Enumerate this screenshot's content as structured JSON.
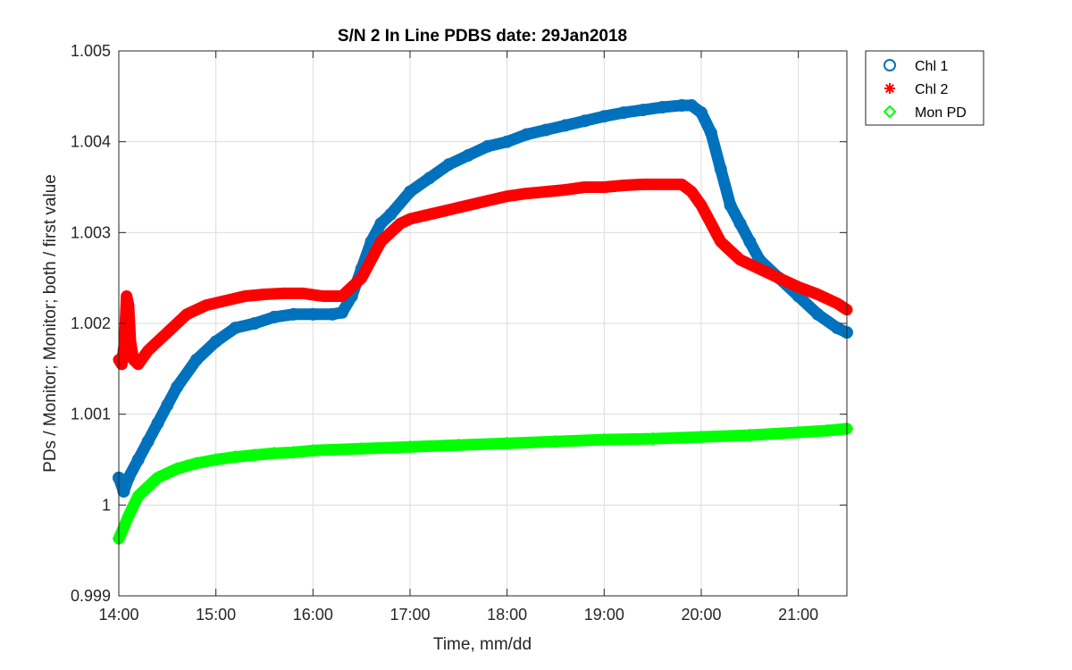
{
  "chart_data": {
    "type": "scatter",
    "title": "S/N 2 In Line PDBS date: 29Jan2018",
    "xlabel": "Time, mm/dd",
    "ylabel": "PDs / Monitor; Monitor; both / first value",
    "xlim": [
      14.0,
      21.5
    ],
    "ylim": [
      0.999,
      1.005
    ],
    "x_ticks": [
      14,
      15,
      16,
      17,
      18,
      19,
      20,
      21
    ],
    "x_tick_labels": [
      "14:00",
      "15:00",
      "16:00",
      "17:00",
      "18:00",
      "19:00",
      "20:00",
      "21:00"
    ],
    "y_ticks": [
      0.999,
      1.0,
      1.001,
      1.002,
      1.003,
      1.004,
      1.005
    ],
    "y_tick_labels": [
      "0.999",
      "1",
      "1.001",
      "1.002",
      "1.003",
      "1.004",
      "1.005"
    ],
    "grid": true,
    "legend_position": "outside top-right",
    "series": [
      {
        "name": "Chl 1",
        "marker": "circle",
        "color": "#0072BD",
        "x": [
          14.0,
          14.05,
          14.1,
          14.2,
          14.3,
          14.4,
          14.5,
          14.6,
          14.8,
          15.0,
          15.2,
          15.4,
          15.6,
          15.8,
          16.0,
          16.2,
          16.3,
          16.4,
          16.5,
          16.6,
          16.7,
          16.8,
          17.0,
          17.2,
          17.4,
          17.6,
          17.8,
          18.0,
          18.2,
          18.4,
          18.6,
          18.8,
          19.0,
          19.2,
          19.4,
          19.6,
          19.8,
          19.9,
          20.0,
          20.1,
          20.2,
          20.3,
          20.4,
          20.5,
          20.6,
          20.8,
          21.0,
          21.2,
          21.4,
          21.5
        ],
        "y": [
          1.0003,
          1.00015,
          1.0003,
          1.0005,
          1.0007,
          1.0009,
          1.0011,
          1.0013,
          1.0016,
          1.0018,
          1.00195,
          1.002,
          1.00207,
          1.0021,
          1.0021,
          1.0021,
          1.00212,
          1.0023,
          1.0026,
          1.0029,
          1.0031,
          1.0032,
          1.00345,
          1.0036,
          1.00375,
          1.00385,
          1.00395,
          1.004,
          1.00408,
          1.00413,
          1.00418,
          1.00423,
          1.00428,
          1.00432,
          1.00435,
          1.00438,
          1.0044,
          1.0044,
          1.00432,
          1.0041,
          1.0037,
          1.0033,
          1.0031,
          1.0029,
          1.0027,
          1.0025,
          1.0023,
          1.0021,
          1.00195,
          1.0019
        ]
      },
      {
        "name": "Chl 2",
        "marker": "asterisk",
        "color": "#FF0000",
        "x": [
          14.0,
          14.03,
          14.06,
          14.08,
          14.1,
          14.12,
          14.15,
          14.2,
          14.3,
          14.5,
          14.7,
          14.9,
          15.1,
          15.3,
          15.5,
          15.7,
          15.9,
          16.1,
          16.3,
          16.4,
          16.5,
          16.6,
          16.7,
          16.8,
          16.9,
          17.0,
          17.2,
          17.4,
          17.6,
          17.8,
          18.0,
          18.2,
          18.4,
          18.6,
          18.8,
          19.0,
          19.2,
          19.4,
          19.6,
          19.8,
          19.9,
          20.0,
          20.1,
          20.2,
          20.3,
          20.4,
          20.6,
          20.8,
          21.0,
          21.2,
          21.4,
          21.5
        ],
        "y": [
          1.0016,
          1.00155,
          1.0018,
          1.0023,
          1.0022,
          1.0018,
          1.0016,
          1.00155,
          1.0017,
          1.0019,
          1.0021,
          1.0022,
          1.00225,
          1.0023,
          1.00232,
          1.00233,
          1.00233,
          1.0023,
          1.0023,
          1.0024,
          1.0025,
          1.0027,
          1.0029,
          1.003,
          1.0031,
          1.00315,
          1.0032,
          1.00325,
          1.0033,
          1.00335,
          1.0034,
          1.00343,
          1.00345,
          1.00347,
          1.0035,
          1.0035,
          1.00352,
          1.00353,
          1.00353,
          1.00353,
          1.00345,
          1.0033,
          1.0031,
          1.0029,
          1.0028,
          1.0027,
          1.0026,
          1.0025,
          1.0024,
          1.00232,
          1.00222,
          1.00215
        ]
      },
      {
        "name": "Mon PD",
        "marker": "diamond",
        "color": "#00FF00",
        "x": [
          14.0,
          14.05,
          14.1,
          14.2,
          14.3,
          14.4,
          14.5,
          14.6,
          14.7,
          14.8,
          15.0,
          15.2,
          15.4,
          15.6,
          15.8,
          16.0,
          16.5,
          17.0,
          17.5,
          18.0,
          18.5,
          19.0,
          19.5,
          20.0,
          20.5,
          21.0,
          21.3,
          21.5
        ],
        "y": [
          0.99963,
          0.99975,
          0.99988,
          1.0001,
          1.0002,
          1.0003,
          1.00035,
          1.0004,
          1.00043,
          1.00046,
          1.0005,
          1.00053,
          1.00055,
          1.00057,
          1.00058,
          1.0006,
          1.00062,
          1.00064,
          1.00066,
          1.00068,
          1.0007,
          1.00072,
          1.00073,
          1.00075,
          1.00077,
          1.0008,
          1.00082,
          1.00084
        ]
      }
    ]
  }
}
